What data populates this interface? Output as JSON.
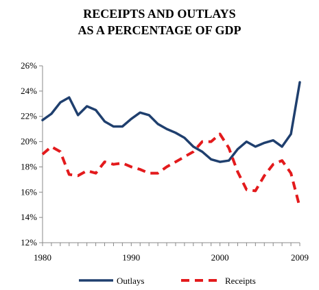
{
  "chart_data": {
    "type": "line",
    "title_line1": "RECEIPTS AND OUTLAYS",
    "title_line2": "AS A PERCENTAGE OF GDP",
    "xlabel": "",
    "ylabel": "",
    "x_ticks": [
      1980,
      1990,
      2000,
      2009
    ],
    "y_ticks": [
      "12%",
      "14%",
      "16%",
      "18%",
      "20%",
      "22%",
      "24%",
      "26%"
    ],
    "y_tick_values": [
      12,
      14,
      16,
      18,
      20,
      22,
      24,
      26
    ],
    "xlim": [
      1980,
      2009
    ],
    "ylim": [
      12,
      26
    ],
    "grid": false,
    "legend_position": "bottom",
    "x": [
      1980,
      1981,
      1982,
      1983,
      1984,
      1985,
      1986,
      1987,
      1988,
      1989,
      1990,
      1991,
      1992,
      1993,
      1994,
      1995,
      1996,
      1997,
      1998,
      1999,
      2000,
      2001,
      2002,
      2003,
      2004,
      2005,
      2006,
      2007,
      2008,
      2009
    ],
    "series": [
      {
        "name": "Outlays",
        "color": "#1f3f6e",
        "style": "solid",
        "values": [
          21.7,
          22.2,
          23.1,
          23.5,
          22.1,
          22.8,
          22.5,
          21.6,
          21.2,
          21.2,
          21.8,
          22.3,
          22.1,
          21.4,
          21.0,
          20.7,
          20.3,
          19.6,
          19.2,
          18.6,
          18.4,
          18.5,
          19.4,
          20.0,
          19.6,
          19.9,
          20.1,
          19.6,
          20.6,
          24.7
        ]
      },
      {
        "name": "Receipts",
        "color": "#e31a1c",
        "style": "dashed",
        "values": [
          19.0,
          19.6,
          19.2,
          17.4,
          17.3,
          17.7,
          17.5,
          18.4,
          18.2,
          18.3,
          18.0,
          17.8,
          17.5,
          17.5,
          18.0,
          18.4,
          18.8,
          19.2,
          20.0,
          20.0,
          20.6,
          19.5,
          17.6,
          16.2,
          16.1,
          17.3,
          18.2,
          18.5,
          17.5,
          14.8
        ]
      }
    ]
  }
}
